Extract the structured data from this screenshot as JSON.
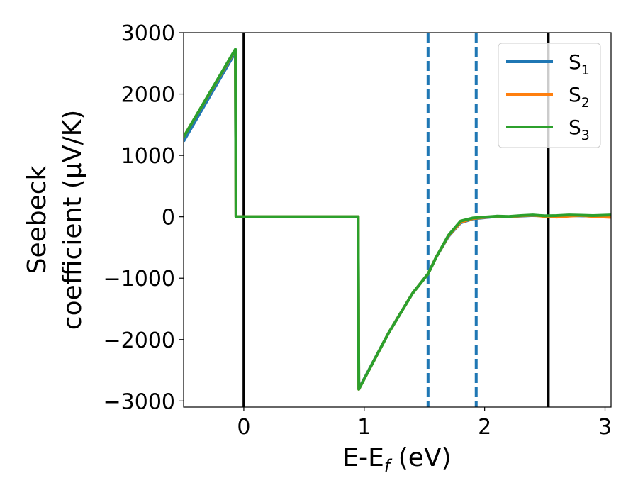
{
  "chart_data": {
    "type": "line",
    "title": "",
    "xlabel": "E-E",
    "xlabel_sub": "f",
    "xlabel_tail": " (eV)",
    "ylabel_lines": [
      "Seebeck",
      "coefficient  (μV/K)"
    ],
    "xlim": [
      -0.5,
      3.05
    ],
    "ylim": [
      -3100,
      3000
    ],
    "xticks": [
      0,
      1,
      2,
      3
    ],
    "yticks": [
      3000,
      2000,
      1000,
      0,
      -1000,
      -2000,
      -3000
    ],
    "xtick_labels": [
      "0",
      "1",
      "2",
      "3"
    ],
    "ytick_labels": [
      "3000",
      "2000",
      "1000",
      "0",
      "−1000",
      "−2000",
      "−3000"
    ],
    "grid": false,
    "legend_position": "top-right",
    "vertical_lines": [
      {
        "x": 0.0,
        "style": "solid",
        "color": "#000000"
      },
      {
        "x": 2.53,
        "style": "solid",
        "color": "#000000"
      },
      {
        "x": 1.53,
        "style": "dashed",
        "color": "#1f77b4"
      },
      {
        "x": 1.93,
        "style": "dashed",
        "color": "#1f77b4"
      }
    ],
    "series": [
      {
        "name": "S",
        "sub": "1",
        "color": "#1f77b4",
        "x": [
          -0.5,
          -0.07,
          -0.065,
          0.95,
          0.955,
          1.2,
          1.4,
          1.53,
          1.6,
          1.7,
          1.8,
          1.9,
          2.0,
          2.1,
          2.2,
          2.3,
          2.4,
          2.5,
          2.6,
          2.7,
          2.8,
          2.9,
          3.05
        ],
        "y": [
          1230,
          2680,
          0,
          0,
          -2800,
          -1900,
          -1250,
          -930,
          -650,
          -320,
          -100,
          -35,
          -15,
          5,
          0,
          10,
          20,
          15,
          10,
          20,
          15,
          10,
          20
        ]
      },
      {
        "name": "S",
        "sub": "2",
        "color": "#ff7f0e",
        "x": [
          -0.5,
          -0.07,
          -0.065,
          0.95,
          0.955,
          1.2,
          1.4,
          1.53,
          1.6,
          1.7,
          1.8,
          1.9,
          2.0,
          2.1,
          2.2,
          2.3,
          2.4,
          2.5,
          2.6,
          2.7,
          2.8,
          2.9,
          3.05
        ],
        "y": [
          1300,
          2720,
          0,
          0,
          -2810,
          -1900,
          -1250,
          -930,
          -650,
          -310,
          -90,
          -30,
          -10,
          5,
          0,
          15,
          25,
          5,
          -5,
          10,
          20,
          5,
          -10
        ]
      },
      {
        "name": "S",
        "sub": "3",
        "color": "#2ca02c",
        "x": [
          -0.5,
          -0.07,
          -0.065,
          0.95,
          0.955,
          1.2,
          1.4,
          1.53,
          1.6,
          1.7,
          1.8,
          1.9,
          2.0,
          2.1,
          2.2,
          2.3,
          2.4,
          2.5,
          2.6,
          2.7,
          2.8,
          2.9,
          3.05
        ],
        "y": [
          1300,
          2730,
          0,
          0,
          -2810,
          -1900,
          -1250,
          -930,
          -650,
          -300,
          -70,
          -20,
          -5,
          10,
          5,
          20,
          30,
          15,
          20,
          30,
          25,
          20,
          30
        ]
      }
    ]
  }
}
